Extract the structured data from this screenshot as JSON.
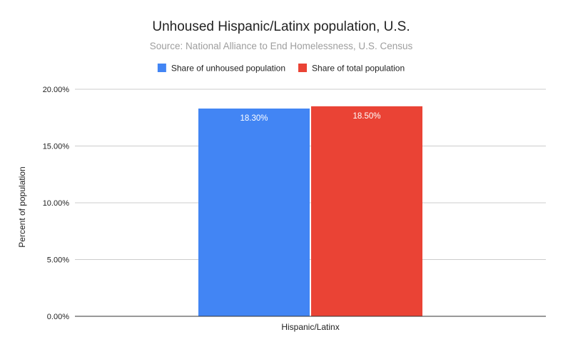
{
  "colors": {
    "background": "#ffffff",
    "grid": "#cccccc",
    "axis": "#333333",
    "title": "#222222",
    "subtitle": "#9e9e9e",
    "text": "#222222"
  },
  "chart_data": {
    "type": "bar",
    "title": "Unhoused Hispanic/Latinx population, U.S.",
    "subtitle": "Source: National Alliance to End Homelessness, U.S. Census",
    "xlabel": "",
    "ylabel": "Percent of population",
    "categories": [
      "Hispanic/Latinx"
    ],
    "series": [
      {
        "name": "Share of unhoused population",
        "color": "#4285f4",
        "values": [
          18.3
        ],
        "labels": [
          "18.30%"
        ]
      },
      {
        "name": "Share of total population",
        "color": "#ea4335",
        "values": [
          18.5
        ],
        "labels": [
          "18.50%"
        ]
      }
    ],
    "ylim": [
      0,
      20
    ],
    "yticks": [
      0,
      5,
      10,
      15,
      20
    ],
    "ytick_labels": [
      "0.00%",
      "5.00%",
      "10.00%",
      "15.00%",
      "20.00%"
    ],
    "grid": true,
    "legend_position": "top"
  }
}
